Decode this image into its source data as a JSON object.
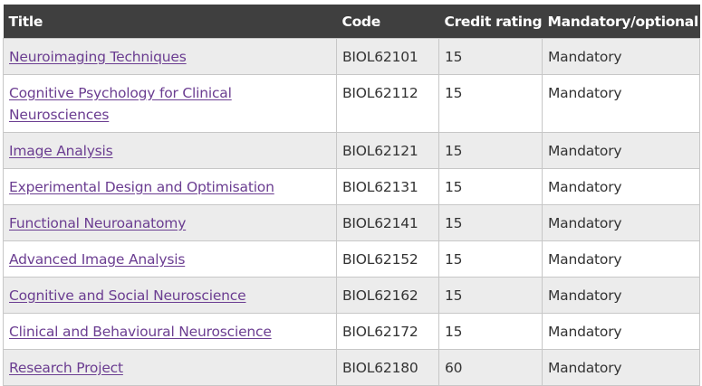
{
  "table": {
    "headers": [
      "Title",
      "Code",
      "Credit rating",
      "Mandatory/optional"
    ],
    "rows": [
      {
        "title": "Neuroimaging Techniques",
        "code": "BIOL62101",
        "credit": "15",
        "status": "Mandatory"
      },
      {
        "title": "Cognitive Psychology for Clinical Neurosciences",
        "code": "BIOL62112",
        "credit": "15",
        "status": "Mandatory"
      },
      {
        "title": "Image Analysis",
        "code": "BIOL62121",
        "credit": "15",
        "status": "Mandatory"
      },
      {
        "title": "Experimental Design and Optimisation",
        "code": "BIOL62131",
        "credit": "15",
        "status": "Mandatory"
      },
      {
        "title": "Functional Neuroanatomy",
        "code": "BIOL62141",
        "credit": "15",
        "status": "Mandatory"
      },
      {
        "title": "Advanced Image Analysis",
        "code": "BIOL62152",
        "credit": "15",
        "status": "Mandatory"
      },
      {
        "title": "Cognitive and Social Neuroscience",
        "code": "BIOL62162",
        "credit": "15",
        "status": "Mandatory"
      },
      {
        "title": "Clinical and Behavioural Neuroscience",
        "code": "BIOL62172",
        "credit": "15",
        "status": "Mandatory"
      },
      {
        "title": "Research Project",
        "code": "BIOL62180",
        "credit": "60",
        "status": "Mandatory"
      }
    ]
  },
  "colors": {
    "header_bg": "#3f3f3f",
    "header_text": "#ffffff",
    "row_alt_bg": "#ececec",
    "link": "#6b3d91",
    "cell_text": "#333333",
    "border": "#c7c7c7"
  }
}
